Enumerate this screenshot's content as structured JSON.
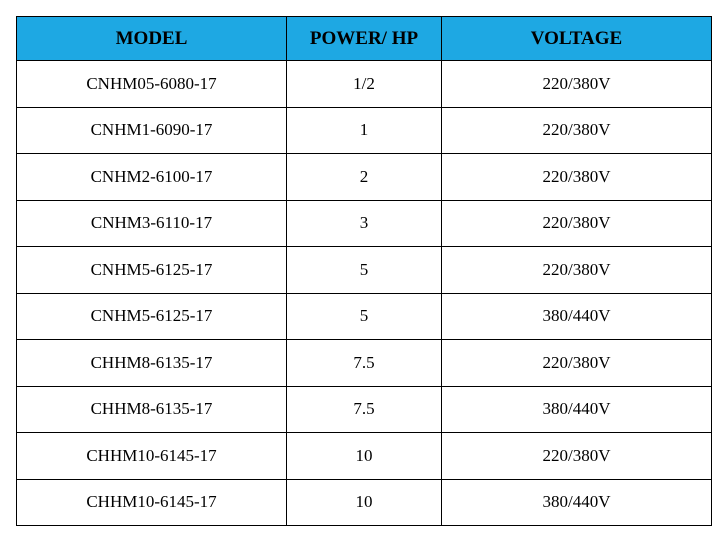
{
  "table": {
    "header": [
      "MODEL",
      "POWER/ HP",
      "VOLTAGE"
    ],
    "rows": [
      [
        "CNHM05-6080-17",
        "1/2",
        "220/380V"
      ],
      [
        "CNHM1-6090-17",
        "1",
        "220/380V"
      ],
      [
        "CNHM2-6100-17",
        "2",
        "220/380V"
      ],
      [
        "CNHM3-6110-17",
        "3",
        "220/380V"
      ],
      [
        "CNHM5-6125-17",
        "5",
        "220/380V"
      ],
      [
        "CNHM5-6125-17",
        "5",
        "380/440V"
      ],
      [
        "CHHM8-6135-17",
        "7.5",
        "220/380V"
      ],
      [
        "CHHM8-6135-17",
        "7.5",
        "380/440V"
      ],
      [
        "CHHM10-6145-17",
        "10",
        "220/380V"
      ],
      [
        "CHHM10-6145-17",
        "10",
        "380/440V"
      ]
    ]
  }
}
